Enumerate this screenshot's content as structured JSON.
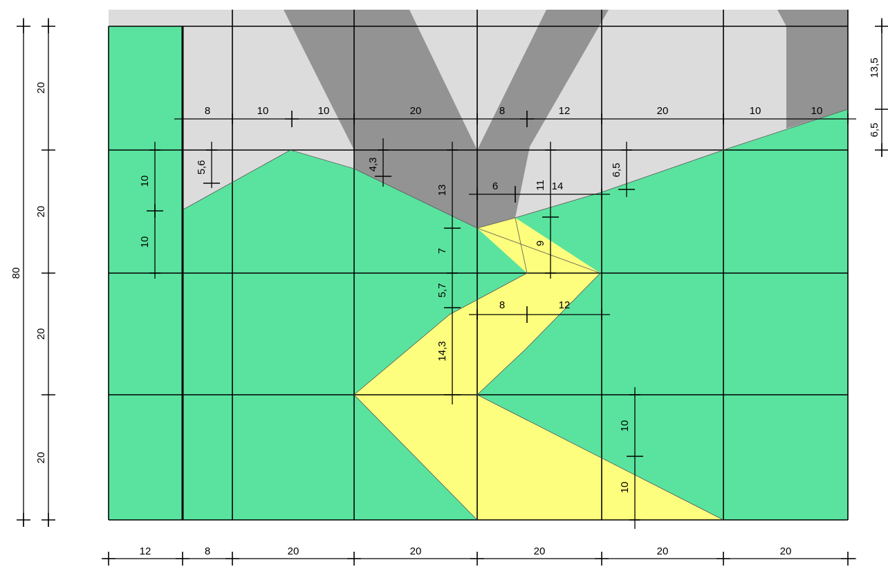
{
  "colors": {
    "green": "#5ae39e",
    "yellow": "#fefe7e",
    "light_gray": "#dcdcdc",
    "dark_gray": "#939393",
    "line": "#000000"
  },
  "dims": {
    "bottom": [
      "12",
      "8",
      "20",
      "20",
      "20",
      "20",
      "20"
    ],
    "left_outer": "80",
    "left_inner": [
      "20",
      "20",
      "20",
      "20"
    ],
    "right": [
      "13,5",
      "6,5"
    ],
    "top_row": [
      "8",
      "10",
      "10",
      "20",
      "8",
      "12",
      "20",
      "10",
      "10"
    ],
    "col1_vertical": [
      "10",
      "10"
    ],
    "mid": {
      "d_5_6": "5,6",
      "d_4_3": "4,3",
      "d_13": "13",
      "d_7": "7",
      "d_5_7": "5,7",
      "d_14_3": "14,3",
      "d_6": "6",
      "d_11": "11",
      "d_14": "14",
      "d_6_5": "6,5",
      "d_9": "9",
      "d_8": "8",
      "d_12": "12",
      "d_10a": "10",
      "d_10b": "10"
    }
  }
}
